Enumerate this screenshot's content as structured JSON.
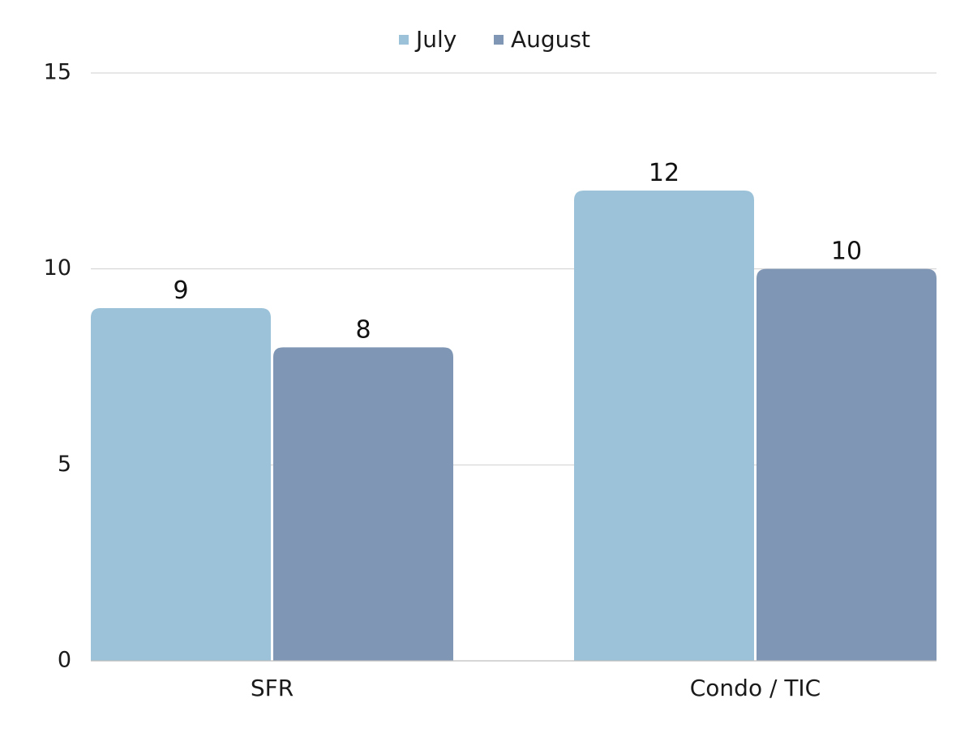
{
  "chart_data": {
    "type": "bar",
    "title": "",
    "xlabel": "",
    "ylabel": "",
    "categories": [
      "SFR",
      "Condo / TIC"
    ],
    "series": [
      {
        "name": "July",
        "values": [
          9,
          12
        ],
        "color": "#9bc2d8"
      },
      {
        "name": "August",
        "values": [
          8,
          10
        ],
        "color": "#7f97b4"
      }
    ],
    "ylim": [
      0,
      15
    ],
    "yticks": [
      "0",
      "5",
      "10",
      "15"
    ],
    "grid": true,
    "legend": "top-center"
  }
}
